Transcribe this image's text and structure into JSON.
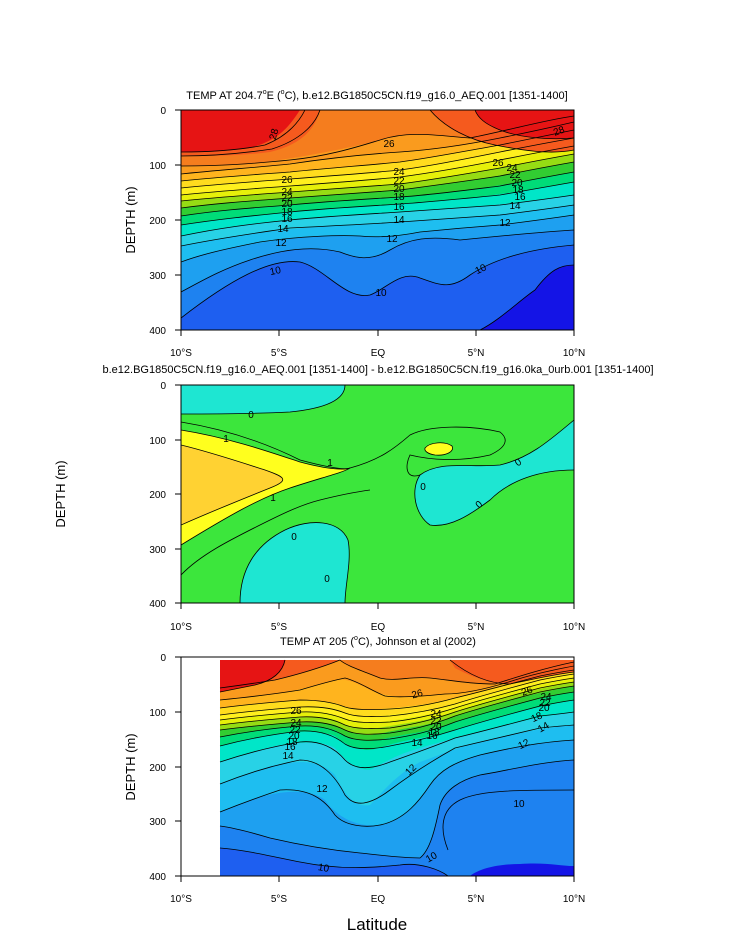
{
  "figure": {
    "x_common_label": "Latitude",
    "x_ticks": [
      "10°S",
      "5°S",
      "EQ",
      "5°N",
      "10°N"
    ]
  },
  "colors": {
    "scale_temp": [
      "#1414e6",
      "#1e5ff0",
      "#1e82f0",
      "#1ea0f0",
      "#1ebef0",
      "#28d2e6",
      "#00e6c8",
      "#00dc78",
      "#32cd32",
      "#96dc14",
      "#e6f00a",
      "#fff01e",
      "#ffdc1e",
      "#ffb41e",
      "#fa9b1e",
      "#f57d1e",
      "#f55a1e",
      "#f03c14",
      "#e61414"
    ],
    "scale_diff": {
      "lt0": "#1ee6d2",
      "0to1": "#3ce63c",
      "1to2": "#ffff1e",
      "gt2": "#ffd232",
      "gt3": "#ffb41e"
    }
  },
  "chart_data": [
    {
      "type": "heatmap",
      "title": "TEMP AT 204.7°E (°C), b.e12.BG1850C5CN.f19_g16.0_AEQ.001 [1351-1400]",
      "title_main": "TEMP AT 204.7",
      "title_sup": "o",
      "title_rest": "E (",
      "title_sup2": "o",
      "title_tail": "C), b.e12.BG1850C5CN.f19_g16.0_AEQ.001 [1351-1400]",
      "xlabel": "",
      "ylabel": "DEPTH (m)",
      "x_range": [
        -10,
        10
      ],
      "y_range": [
        0,
        400
      ],
      "y_ticks": [
        0,
        100,
        200,
        300,
        400
      ],
      "x": [
        -10,
        -7.5,
        -5,
        -2.5,
        0,
        2.5,
        5,
        7.5,
        10
      ],
      "depth": [
        0,
        50,
        100,
        150,
        200,
        250,
        300,
        350,
        400
      ],
      "values": [
        [
          28.5,
          28.5,
          27.0,
          26.5,
          26.5,
          26.5,
          27.5,
          28.5,
          28.5
        ],
        [
          28.0,
          27.8,
          26.8,
          26.2,
          26.0,
          26.0,
          26.5,
          27.0,
          26.5
        ],
        [
          26.5,
          26.5,
          26.0,
          25.0,
          24.5,
          24.5,
          23.5,
          22.0,
          20.5
        ],
        [
          22.5,
          22.0,
          21.0,
          19.5,
          18.0,
          17.5,
          16.5,
          15.5,
          14.5
        ],
        [
          15.5,
          15.0,
          14.5,
          14.0,
          13.5,
          13.5,
          13.0,
          12.5,
          12.0
        ],
        [
          12.5,
          12.0,
          11.8,
          11.5,
          11.5,
          11.8,
          11.5,
          11.0,
          10.5
        ],
        [
          10.8,
          10.5,
          10.2,
          10.0,
          9.8,
          10.2,
          10.5,
          10.0,
          9.0
        ],
        [
          10.0,
          9.8,
          9.6,
          9.5,
          9.6,
          9.8,
          9.8,
          9.0,
          8.5
        ],
        [
          9.8,
          9.6,
          9.4,
          9.5,
          9.6,
          9.6,
          9.2,
          8.7,
          8.3
        ]
      ],
      "contour_levels": [
        8,
        9,
        10,
        10.5,
        11,
        12,
        13,
        14,
        15,
        16,
        17,
        18,
        19,
        20,
        22,
        24,
        25,
        26,
        27,
        28
      ],
      "contour_labels": [
        "28",
        "28",
        "26",
        "26",
        "24",
        "22",
        "20",
        "18",
        "16",
        "14",
        "12",
        "10",
        "10"
      ]
    },
    {
      "type": "heatmap",
      "title": "b.e12.BG1850C5CN.f19_g16.0_AEQ.001 [1351-1400] - b.e12.BG1850C5CN.f19_g16.0ka_0urb.001 [1351-1400]",
      "xlabel": "",
      "ylabel": "DEPTH (m)",
      "x_range": [
        -10,
        10
      ],
      "y_range": [
        0,
        400
      ],
      "y_ticks": [
        0,
        100,
        200,
        300,
        400
      ],
      "x": [
        -10,
        -7.5,
        -5,
        -2.5,
        0,
        2.5,
        5,
        7.5,
        10
      ],
      "depth": [
        0,
        50,
        100,
        150,
        200,
        250,
        300,
        350,
        400
      ],
      "values": [
        [
          -0.3,
          -0.3,
          -0.3,
          0.3,
          0.3,
          0.3,
          0.3,
          0.3,
          0.3
        ],
        [
          0.6,
          0.5,
          0.4,
          0.3,
          0.3,
          0.3,
          0.3,
          0.3,
          0.2
        ],
        [
          1.5,
          1.3,
          1.0,
          0.6,
          0.5,
          0.7,
          1.0,
          0.3,
          -0.2
        ],
        [
          2.5,
          1.9,
          1.4,
          0.9,
          0.4,
          0.3,
          0.1,
          -0.2,
          -0.2
        ],
        [
          2.2,
          1.3,
          0.7,
          0.3,
          0.2,
          -0.2,
          -0.3,
          0.1,
          0.2
        ],
        [
          1.0,
          0.5,
          0.3,
          0.2,
          0.2,
          0.2,
          0.3,
          0.3,
          0.3
        ],
        [
          0.5,
          0.2,
          -0.2,
          -0.2,
          0.2,
          0.2,
          0.3,
          0.3,
          0.3
        ],
        [
          0.2,
          0.1,
          -0.3,
          -0.2,
          0.2,
          0.2,
          0.3,
          0.3,
          0.3
        ],
        [
          0.2,
          0.1,
          -0.3,
          0.1,
          0.2,
          0.2,
          0.3,
          0.3,
          0.3
        ]
      ],
      "contour_levels": [
        0,
        1,
        2
      ],
      "contour_labels": [
        "0",
        "1",
        "1",
        "1",
        "0",
        "0",
        "0",
        "0"
      ]
    },
    {
      "type": "heatmap",
      "title": "TEMP AT 205 (°C), Johnson et al (2002)",
      "title_main": "TEMP AT 205 (",
      "title_sup": "o",
      "title_tail": "C), Johnson et al (2002)",
      "xlabel": "Latitude",
      "ylabel": "DEPTH (m)",
      "x_range": [
        -10,
        10
      ],
      "y_range": [
        0,
        400
      ],
      "y_ticks": [
        0,
        100,
        200,
        300,
        400
      ],
      "data_x_start": -8,
      "x": [
        -8,
        -6,
        -4,
        -2,
        0,
        2,
        4,
        6,
        8,
        10
      ],
      "depth": [
        0,
        50,
        100,
        150,
        200,
        250,
        300,
        350,
        400
      ],
      "values": [
        [
          28.8,
          28.6,
          27.8,
          26.8,
          26.4,
          26.2,
          26.0,
          26.5,
          25.8,
          24.8
        ],
        [
          28.2,
          27.8,
          27.0,
          25.8,
          25.8,
          25.5,
          25.2,
          25.0,
          23.5,
          20.5
        ],
        [
          27.0,
          26.5,
          25.0,
          24.5,
          23.0,
          22.5,
          22.0,
          20.5,
          16.5,
          14.5
        ],
        [
          22.5,
          20.5,
          18.0,
          16.5,
          15.0,
          15.5,
          14.5,
          13.5,
          13.0,
          12.5
        ],
        [
          16.0,
          14.8,
          13.5,
          13.2,
          12.5,
          12.0,
          12.2,
          12.0,
          11.8,
          11.8
        ],
        [
          13.0,
          12.6,
          12.2,
          12.0,
          11.3,
          11.7,
          11.2,
          11.0,
          11.0,
          11.0
        ],
        [
          11.5,
          11.2,
          11.0,
          11.0,
          10.8,
          10.8,
          10.2,
          10.0,
          10.0,
          10.0
        ],
        [
          10.5,
          10.4,
          10.3,
          10.4,
          10.5,
          10.4,
          9.8,
          9.6,
          9.6,
          9.6
        ],
        [
          9.8,
          9.6,
          9.7,
          9.8,
          10.0,
          9.8,
          9.2,
          8.9,
          8.9,
          8.9
        ]
      ],
      "contour_levels": [
        9,
        10,
        11,
        12,
        13,
        14,
        15,
        16,
        17,
        18,
        19,
        20,
        22,
        24,
        25,
        26,
        27,
        28
      ],
      "contour_labels": [
        "26",
        "24",
        "22",
        "20",
        "18",
        "16",
        "14",
        "26",
        "24",
        "22",
        "20",
        "18",
        "16",
        "14",
        "26",
        "24",
        "22",
        "20",
        "18",
        "14",
        "12",
        "12",
        "12",
        "10",
        "10"
      ]
    }
  ]
}
